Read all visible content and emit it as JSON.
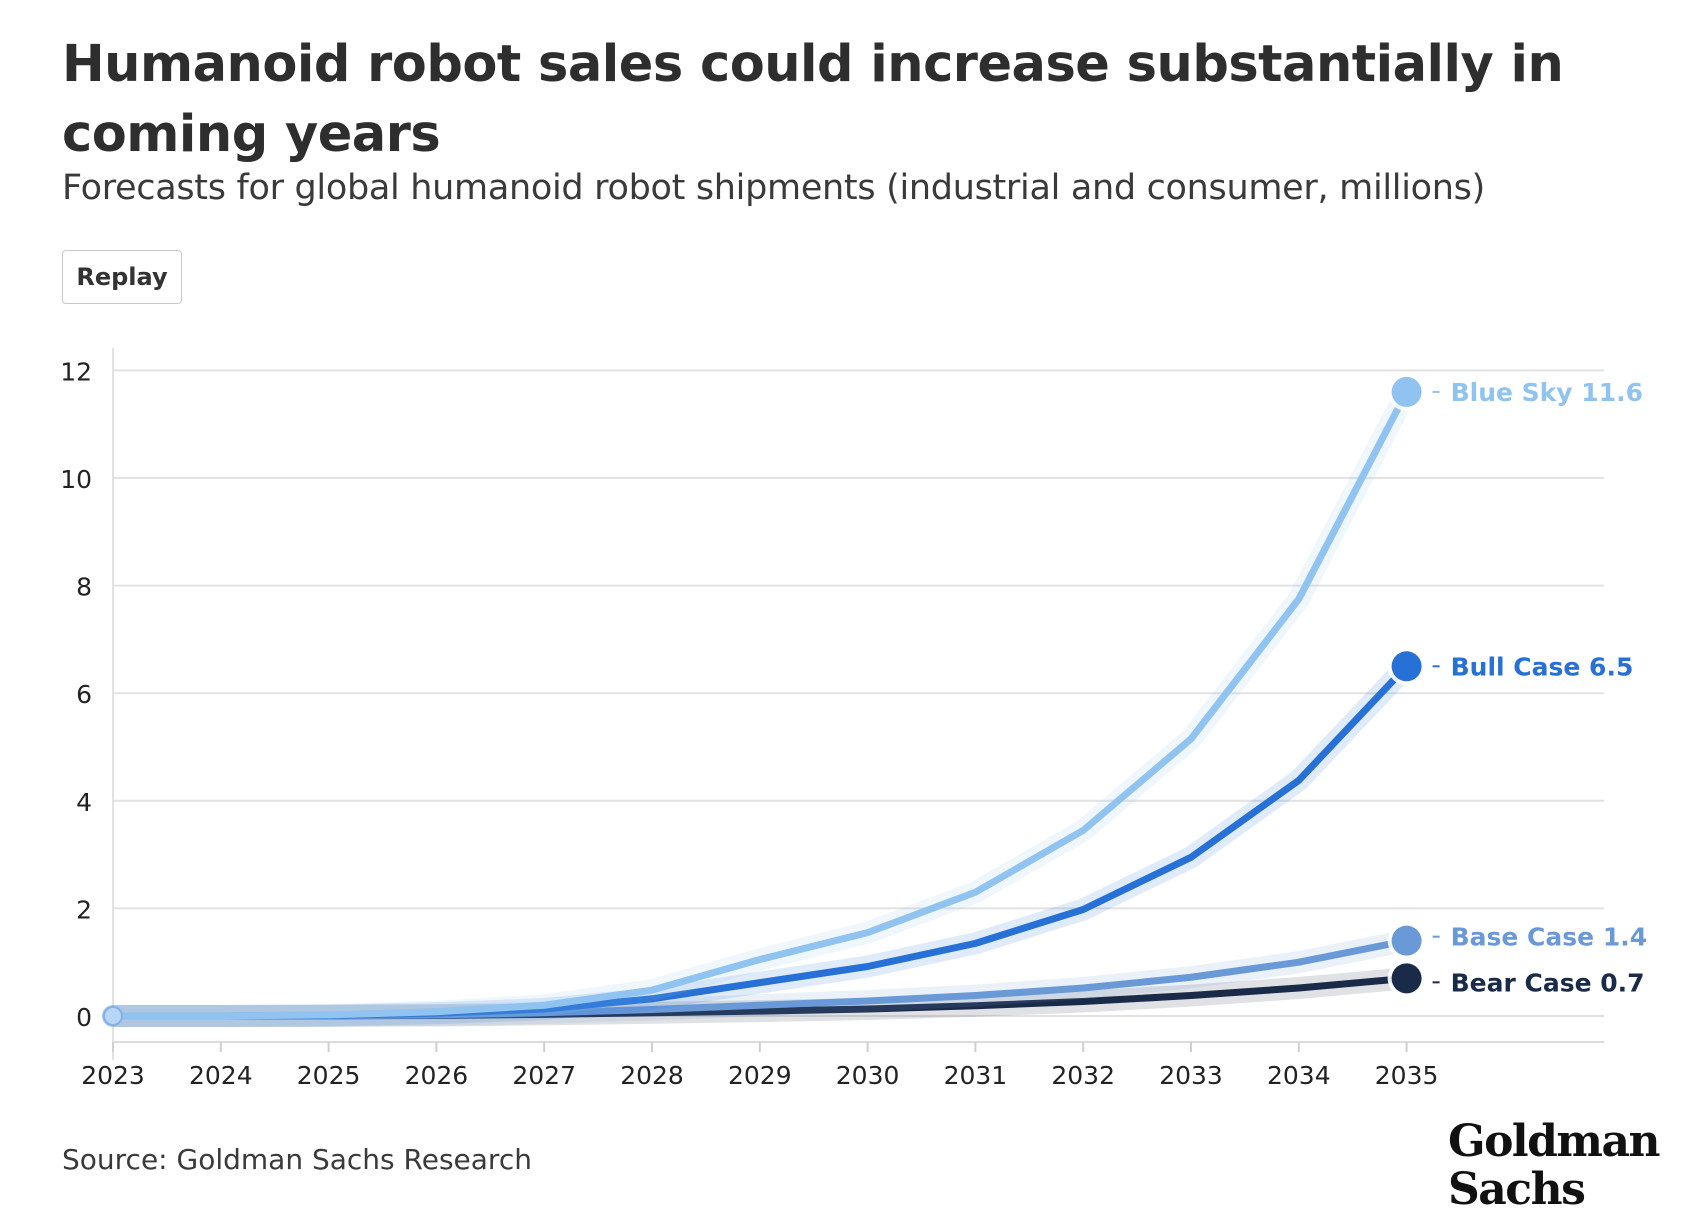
{
  "title": "Humanoid robot sales could increase substantially in coming years",
  "subtitle": "Forecasts for global humanoid robot shipments (industrial and consumer, millions)",
  "replay_label": "Replay",
  "source": "Source: Goldman Sachs Research",
  "logo": {
    "line1": "Goldman",
    "line2": "Sachs"
  },
  "chart_data": {
    "type": "line",
    "title": "Humanoid robot sales could increase substantially in coming years",
    "subtitle": "Forecasts for global humanoid robot shipments (industrial and consumer, millions)",
    "xlabel": "",
    "ylabel": "",
    "x": [
      "2023",
      "2024",
      "2025",
      "2026",
      "2027",
      "2028",
      "2029",
      "2030",
      "2031",
      "2032",
      "2033",
      "2034",
      "2035"
    ],
    "ylim": [
      0,
      12
    ],
    "yticks": [
      0,
      2,
      4,
      6,
      8,
      10,
      12
    ],
    "grid": true,
    "series": [
      {
        "name": "Blue Sky",
        "end_label": "Blue Sky 11.6",
        "color": "#90c3ef",
        "values": [
          0,
          0,
          0.02,
          0.08,
          0.2,
          0.48,
          1.05,
          1.55,
          2.3,
          3.45,
          5.15,
          7.75,
          11.6
        ]
      },
      {
        "name": "Bull Case",
        "end_label": "Bull Case 6.5",
        "color": "#2670d6",
        "values": [
          0,
          0,
          0.01,
          0.05,
          0.13,
          0.32,
          0.62,
          0.92,
          1.35,
          1.98,
          2.95,
          4.38,
          6.5
        ]
      },
      {
        "name": "Base Case",
        "end_label": "Base Case 1.4",
        "color": "#6a99d8",
        "values": [
          0,
          0,
          0.005,
          0.02,
          0.06,
          0.12,
          0.2,
          0.28,
          0.38,
          0.52,
          0.72,
          1.0,
          1.4
        ]
      },
      {
        "name": "Bear Case",
        "end_label": "Bear Case 0.7",
        "color": "#1a2b4a",
        "values": [
          0,
          0,
          0.002,
          0.01,
          0.03,
          0.06,
          0.09,
          0.13,
          0.19,
          0.27,
          0.38,
          0.52,
          0.7
        ]
      }
    ]
  }
}
